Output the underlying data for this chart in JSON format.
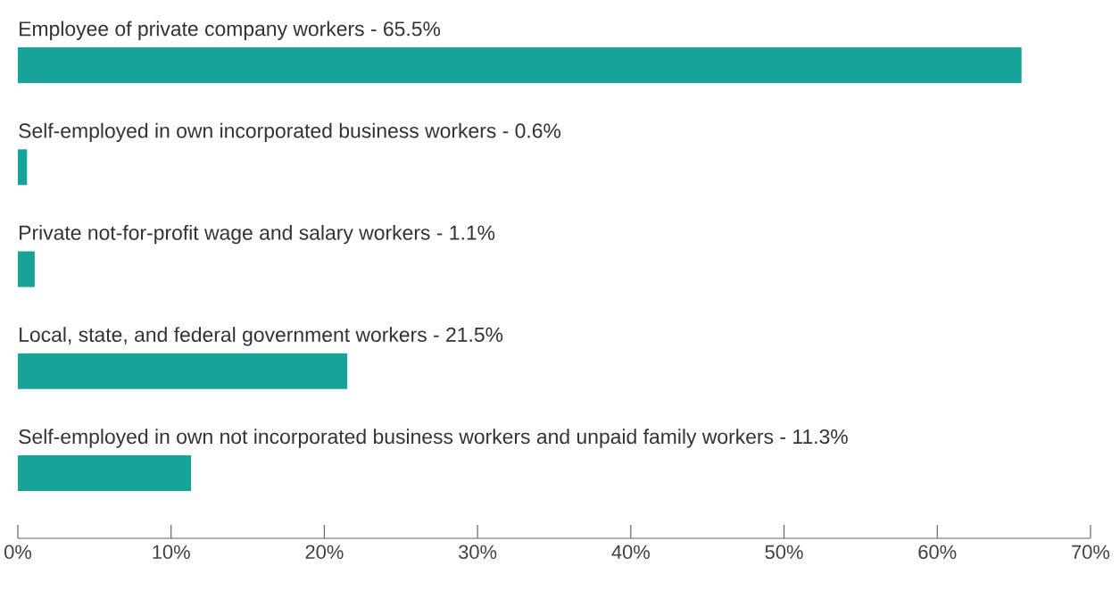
{
  "chart_data": {
    "type": "bar",
    "orientation": "horizontal",
    "categories": [
      "Employee of private company workers - 65.5%",
      "Self-employed in own incorporated business workers - 0.6%",
      "Private not-for-profit wage and salary workers - 1.1%",
      "Local, state, and federal government workers - 21.5%",
      "Self-employed in own not incorporated business workers and unpaid family workers - 11.3%"
    ],
    "values": [
      65.5,
      0.6,
      1.1,
      21.5,
      11.3
    ],
    "color": "#17a398",
    "xlim": [
      0,
      70
    ],
    "xticks": [
      {
        "value": 0,
        "label": "0%"
      },
      {
        "value": 10,
        "label": "10%"
      },
      {
        "value": 20,
        "label": "20%"
      },
      {
        "value": 30,
        "label": "30%"
      },
      {
        "value": 40,
        "label": "40%"
      },
      {
        "value": 50,
        "label": "50%"
      },
      {
        "value": 60,
        "label": "60%"
      },
      {
        "value": 70,
        "label": "70%"
      }
    ]
  }
}
